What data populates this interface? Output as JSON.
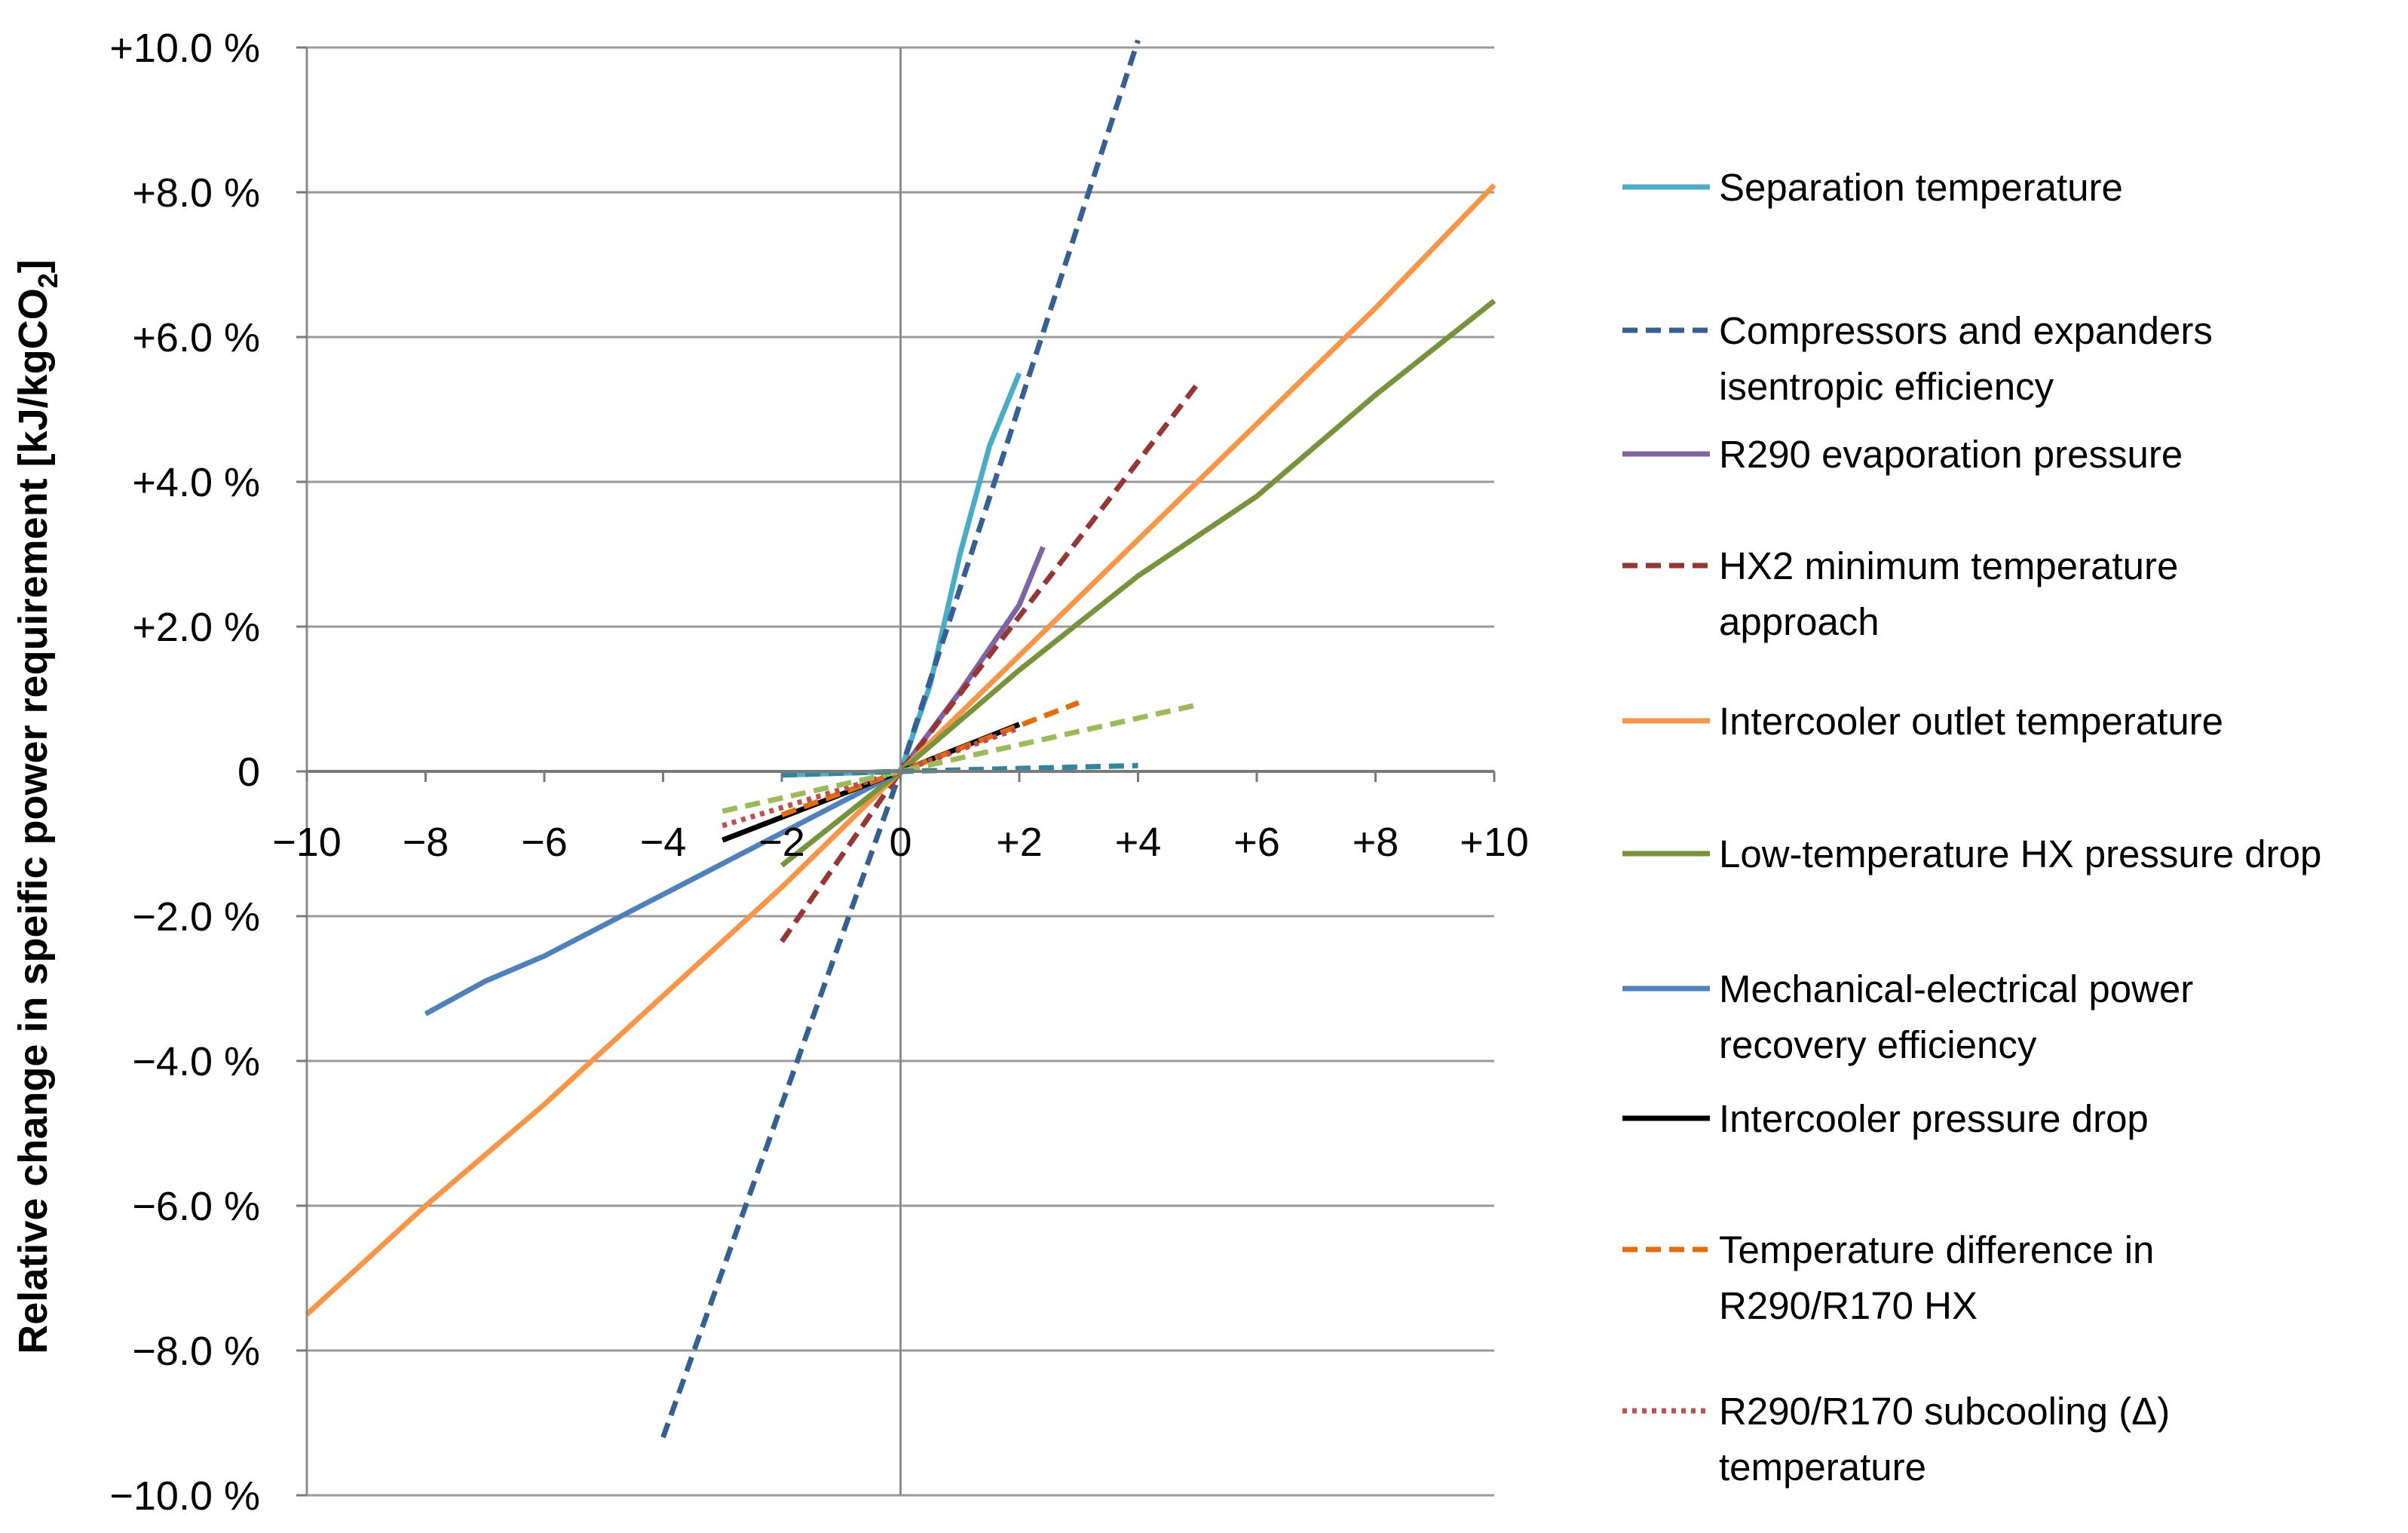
{
  "chart_data": {
    "type": "line",
    "title": "",
    "xlabel": "",
    "ylabel": "Relative change in speific power requirement [kJ/kgCO",
    "ylabel_subscript": "2",
    "ylabel_suffix": "]",
    "xlim": [
      -10,
      10
    ],
    "ylim": [
      -10,
      10
    ],
    "x_ticks": [
      -10,
      -8,
      -6,
      -4,
      -2,
      0,
      2,
      4,
      6,
      8,
      10
    ],
    "x_tick_labels": [
      "−10",
      "−8",
      "−6",
      "−4",
      "−2",
      "0",
      "+2",
      "+4",
      "+6",
      "+8",
      "+10"
    ],
    "y_ticks": [
      10,
      8,
      6,
      4,
      2,
      0,
      -2,
      -4,
      -6,
      -8,
      -10
    ],
    "y_tick_labels": [
      "+10.0 %",
      "+8.0 %",
      "+6.0 %",
      "+4.0 %",
      "+2.0 %",
      "0",
      "−2.0 %",
      "−4.0 %",
      "−6.0 %",
      "−8.0 %",
      "−10.0 %"
    ],
    "grid": true,
    "legend_position": "right",
    "series": [
      {
        "name": "Separation temperature",
        "color": "#4BACC6",
        "dash": "solid",
        "points": [
          [
            -2,
            -0.05
          ],
          [
            0,
            0
          ],
          [
            0.5,
            1.2
          ],
          [
            1,
            3.0
          ],
          [
            1.5,
            4.5
          ],
          [
            2,
            5.5
          ]
        ]
      },
      {
        "name": "Compressors and expanders isentropic efficiency",
        "color": "#376092",
        "dash": "dashed",
        "points": [
          [
            -4,
            -9.2
          ],
          [
            0,
            0
          ],
          [
            4,
            10.1
          ]
        ]
      },
      {
        "name": "R290 evaporation pressure",
        "color": "#8064A2",
        "dash": "solid",
        "points": [
          [
            0,
            0
          ],
          [
            1,
            1.1
          ],
          [
            2,
            2.3
          ],
          [
            2.4,
            3.1
          ]
        ]
      },
      {
        "name": "HX2 minimum temperature approach",
        "color": "#953735",
        "dash": "dashed",
        "points": [
          [
            -2,
            -2.35
          ],
          [
            0,
            0
          ],
          [
            5,
            5.35
          ]
        ]
      },
      {
        "name": "Intercooler outlet temperature",
        "color": "#F79646",
        "dash": "solid",
        "points": [
          [
            -10,
            -7.5
          ],
          [
            -8,
            -6.0
          ],
          [
            -6,
            -4.6
          ],
          [
            -4,
            -3.1
          ],
          [
            -2,
            -1.6
          ],
          [
            0,
            0
          ],
          [
            2,
            1.6
          ],
          [
            4,
            3.2
          ],
          [
            6,
            4.8
          ],
          [
            8,
            6.4
          ],
          [
            10,
            8.1
          ]
        ]
      },
      {
        "name": "Low-temperature HX pressure drop",
        "color": "#77933C",
        "dash": "solid",
        "points": [
          [
            -2,
            -1.3
          ],
          [
            0,
            0
          ],
          [
            2,
            1.4
          ],
          [
            4,
            2.7
          ],
          [
            6,
            3.8
          ],
          [
            8,
            5.2
          ],
          [
            10,
            6.5
          ]
        ]
      },
      {
        "name": "Mechanical-electrical power recovery efficiency",
        "color": "#4F81BD",
        "dash": "solid",
        "points": [
          [
            -8,
            -3.35
          ],
          [
            -7,
            -2.9
          ],
          [
            -6,
            -2.55
          ],
          [
            -4,
            -1.7
          ],
          [
            -2,
            -0.85
          ],
          [
            0,
            0
          ]
        ]
      },
      {
        "name": "Intercooler pressure drop",
        "color": "#000000",
        "dash": "solid",
        "points": [
          [
            -3,
            -0.95
          ],
          [
            0,
            0
          ],
          [
            2,
            0.65
          ]
        ]
      },
      {
        "name": "Temperature difference in R290/R170 HX",
        "color": "#E46C0A",
        "dash": "dashed",
        "points": [
          [
            -2,
            -0.6
          ],
          [
            0,
            0
          ],
          [
            3,
            0.95
          ]
        ]
      },
      {
        "name": "R290/R170 subcooling (Δ) temperature",
        "color": "#C0504D",
        "dash": "dotted",
        "points": [
          [
            -3,
            -0.75
          ],
          [
            0,
            0
          ],
          [
            2,
            0.6
          ]
        ]
      },
      {
        "name": "",
        "color": "#9BBB59",
        "dash": "dashed",
        "points": [
          [
            -3,
            -0.55
          ],
          [
            0,
            0
          ],
          [
            5,
            0.92
          ]
        ]
      },
      {
        "name": "",
        "color": "#31859C",
        "dash": "dashed",
        "points": [
          [
            -2,
            -0.05
          ],
          [
            0,
            0
          ],
          [
            4,
            0.08
          ]
        ]
      }
    ]
  },
  "legend": {
    "items": [
      {
        "lines": [
          "Separation temperature"
        ],
        "color": "#4BACC6",
        "dash": "solid"
      },
      {
        "lines": [
          "Compressors and expanders",
          "isentropic efficiency"
        ],
        "color": "#376092",
        "dash": "dashed"
      },
      {
        "lines": [
          "R290 evaporation pressure"
        ],
        "color": "#8064A2",
        "dash": "solid"
      },
      {
        "lines": [
          "HX2 minimum temperature",
          "approach"
        ],
        "color": "#953735",
        "dash": "dashed"
      },
      {
        "lines": [
          "Intercooler outlet temperature"
        ],
        "color": "#F79646",
        "dash": "solid"
      },
      {
        "lines": [
          "Low-temperature HX pressure drop"
        ],
        "color": "#77933C",
        "dash": "solid"
      },
      {
        "lines": [
          "Mechanical-electrical power",
          "recovery efficiency"
        ],
        "color": "#4F81BD",
        "dash": "solid"
      },
      {
        "lines": [
          "Intercooler pressure drop"
        ],
        "color": "#000000",
        "dash": "solid"
      },
      {
        "lines": [
          "Temperature difference in",
          "R290/R170 HX"
        ],
        "color": "#E46C0A",
        "dash": "dashed"
      },
      {
        "lines": [
          "R290/R170 subcooling (Δ)",
          "temperature"
        ],
        "color": "#C0504D",
        "dash": "dotted"
      }
    ]
  }
}
